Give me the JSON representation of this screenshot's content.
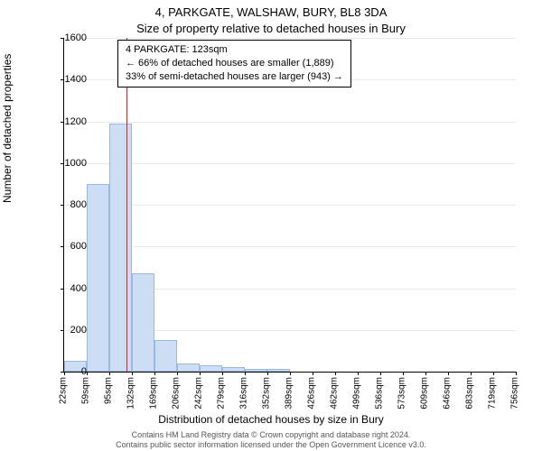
{
  "titles": {
    "main": "4, PARKGATE, WALSHAW, BURY, BL8 3DA",
    "sub": "Size of property relative to detached houses in Bury"
  },
  "annotation": {
    "line1": "4 PARKGATE: 123sqm",
    "line2": "← 66% of detached houses are smaller (1,889)",
    "line3": "33% of semi-detached houses are larger (943) →"
  },
  "axes": {
    "ylabel": "Number of detached properties",
    "xlabel": "Distribution of detached houses by size in Bury",
    "ymax": 1600,
    "ytick_step": 200,
    "yticks": [
      0,
      200,
      400,
      600,
      800,
      1000,
      1200,
      1400,
      1600
    ]
  },
  "chart": {
    "type": "histogram",
    "background_color": "#ffffff",
    "grid_color": "#e8e8e8",
    "bar_fill": "#cdddf4",
    "bar_stroke": "#9bb8e0",
    "marker_color": "#e02020",
    "marker_value": 123,
    "bin_start": 22,
    "bin_width": 36.8,
    "xticks": [
      "22sqm",
      "59sqm",
      "95sqm",
      "132sqm",
      "169sqm",
      "206sqm",
      "242sqm",
      "279sqm",
      "316sqm",
      "352sqm",
      "389sqm",
      "426sqm",
      "462sqm",
      "499sqm",
      "536sqm",
      "573sqm",
      "609sqm",
      "646sqm",
      "683sqm",
      "719sqm",
      "756sqm"
    ],
    "values": [
      50,
      900,
      1190,
      470,
      150,
      40,
      30,
      20,
      15,
      15,
      0,
      0,
      0,
      0,
      0,
      0,
      0,
      0,
      0,
      0
    ]
  },
  "footer": {
    "line1": "Contains HM Land Registry data © Crown copyright and database right 2024.",
    "line2": "Contains public sector information licensed under the Open Government Licence v3.0."
  }
}
